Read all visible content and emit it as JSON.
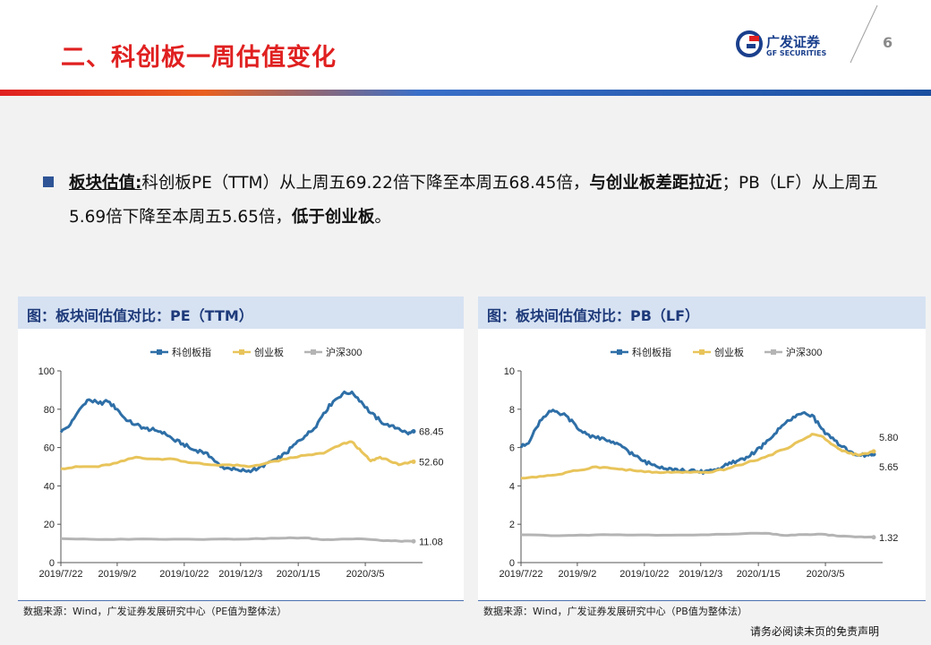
{
  "header": {
    "title": "二、科创板一周估值变化",
    "logo_cn": "广发证券",
    "logo_en": "GF SECURITIES",
    "page_number": "6"
  },
  "bullet": {
    "lead": "板块估值:",
    "text1": "科创板PE（TTM）从上周五69.22倍下降至本周五68.45倍，",
    "bold1": "与创业板差距拉近",
    "text2": "；PB（LF）从上周五5.69倍下降至本周五5.65倍，",
    "bold2": "低于创业板",
    "text3": "。"
  },
  "disclaimer": "请务必阅读末页的免责声明",
  "colors": {
    "title_red": "#e02020",
    "brand_blue": "#1a3f8c",
    "kechuang": "#2e6fa7",
    "chuangye": "#e8c45a",
    "hushen300": "#b4b4b4"
  },
  "chart_data": [
    {
      "type": "line",
      "panel_title": "图：板块间估值对比：PE（TTM）",
      "source": "数据来源：Wind，广发证券发展研究中心（PE值为整体法）",
      "legend_position": "top-center",
      "x_ticks": [
        "2019/7/22",
        "2019/9/2",
        "2019/10/22",
        "2019/12/3",
        "2020/1/15",
        "2020/3/5"
      ],
      "ylim": [
        0,
        100
      ],
      "y_ticks": [
        0,
        20,
        40,
        60,
        80,
        100
      ],
      "grid": false,
      "series": [
        {
          "name": "科创板指",
          "color": "#2e6fa7",
          "end_label": "68.45",
          "points": [
            [
              "2019-07-22",
              68
            ],
            [
              "2019-07-29",
              72
            ],
            [
              "2019-08-05",
              80
            ],
            [
              "2019-08-12",
              85
            ],
            [
              "2019-08-19",
              83
            ],
            [
              "2019-08-26",
              84
            ],
            [
              "2019-09-02",
              80
            ],
            [
              "2019-09-09",
              74
            ],
            [
              "2019-09-16",
              72
            ],
            [
              "2019-09-23",
              70
            ],
            [
              "2019-09-30",
              69
            ],
            [
              "2019-10-07",
              68
            ],
            [
              "2019-10-14",
              64
            ],
            [
              "2019-10-21",
              62
            ],
            [
              "2019-10-28",
              59
            ],
            [
              "2019-11-04",
              58
            ],
            [
              "2019-11-11",
              55
            ],
            [
              "2019-11-18",
              50
            ],
            [
              "2019-11-25",
              49
            ],
            [
              "2019-12-02",
              48
            ],
            [
              "2019-12-09",
              48
            ],
            [
              "2019-12-16",
              49
            ],
            [
              "2019-12-23",
              52
            ],
            [
              "2019-12-30",
              54
            ],
            [
              "2020-01-06",
              57
            ],
            [
              "2020-01-13",
              62
            ],
            [
              "2020-01-20",
              66
            ],
            [
              "2020-01-27",
              70
            ],
            [
              "2020-02-03",
              78
            ],
            [
              "2020-02-10",
              84
            ],
            [
              "2020-02-17",
              88
            ],
            [
              "2020-02-24",
              89
            ],
            [
              "2020-03-02",
              84
            ],
            [
              "2020-03-09",
              78
            ],
            [
              "2020-03-16",
              74
            ],
            [
              "2020-03-23",
              71
            ],
            [
              "2020-03-30",
              70
            ],
            [
              "2020-04-06",
              67
            ],
            [
              "2020-04-10",
              68.45
            ]
          ]
        },
        {
          "name": "创业板",
          "color": "#e8c45a",
          "end_label": "52.60",
          "points": [
            [
              "2019-07-22",
              49
            ],
            [
              "2019-08-05",
              50
            ],
            [
              "2019-08-19",
              50
            ],
            [
              "2019-09-02",
              52
            ],
            [
              "2019-09-16",
              55
            ],
            [
              "2019-09-30",
              54
            ],
            [
              "2019-10-14",
              54
            ],
            [
              "2019-10-28",
              52
            ],
            [
              "2019-11-11",
              51
            ],
            [
              "2019-11-25",
              51
            ],
            [
              "2019-12-09",
              50
            ],
            [
              "2019-12-23",
              52
            ],
            [
              "2020-01-06",
              54
            ],
            [
              "2020-01-20",
              56
            ],
            [
              "2020-02-03",
              57
            ],
            [
              "2020-02-17",
              62
            ],
            [
              "2020-02-24",
              63
            ],
            [
              "2020-03-02",
              58
            ],
            [
              "2020-03-09",
              53
            ],
            [
              "2020-03-16",
              55
            ],
            [
              "2020-03-23",
              53
            ],
            [
              "2020-03-30",
              51
            ],
            [
              "2020-04-10",
              52.6
            ]
          ]
        },
        {
          "name": "沪深300",
          "color": "#b4b4b4",
          "end_label": "11.08",
          "points": [
            [
              "2019-07-22",
              12.5
            ],
            [
              "2019-08-19",
              12
            ],
            [
              "2019-09-16",
              12.3
            ],
            [
              "2019-10-14",
              12.2
            ],
            [
              "2019-11-11",
              12.2
            ],
            [
              "2019-12-09",
              12.3
            ],
            [
              "2020-01-06",
              12.8
            ],
            [
              "2020-01-20",
              12.9
            ],
            [
              "2020-02-03",
              11.9
            ],
            [
              "2020-02-17",
              12.3
            ],
            [
              "2020-03-02",
              12.4
            ],
            [
              "2020-03-16",
              11.6
            ],
            [
              "2020-03-30",
              11.2
            ],
            [
              "2020-04-10",
              11.08
            ]
          ]
        }
      ]
    },
    {
      "type": "line",
      "panel_title": "图：板块间估值对比：PB（LF）",
      "source": "数据来源：Wind，广发证券发展研究中心（PB值为整体法）",
      "legend_position": "top-center",
      "x_ticks": [
        "2019/7/22",
        "2019/9/2",
        "2019/10/22",
        "2019/12/3",
        "2020/1/15",
        "2020/3/5"
      ],
      "ylim": [
        0,
        10
      ],
      "y_ticks": [
        0,
        2,
        4,
        6,
        8,
        10
      ],
      "grid": false,
      "series": [
        {
          "name": "科创板指",
          "color": "#2e6fa7",
          "end_label": "5.65",
          "points": [
            [
              "2019-07-22",
              6.0
            ],
            [
              "2019-07-29",
              6.4
            ],
            [
              "2019-08-05",
              7.4
            ],
            [
              "2019-08-12",
              7.9
            ],
            [
              "2019-08-19",
              7.8
            ],
            [
              "2019-08-26",
              7.6
            ],
            [
              "2019-09-02",
              7.0
            ],
            [
              "2019-09-09",
              6.7
            ],
            [
              "2019-09-16",
              6.5
            ],
            [
              "2019-09-23",
              6.4
            ],
            [
              "2019-09-30",
              6.2
            ],
            [
              "2019-10-07",
              6.0
            ],
            [
              "2019-10-14",
              5.6
            ],
            [
              "2019-10-21",
              5.3
            ],
            [
              "2019-10-28",
              5.1
            ],
            [
              "2019-11-04",
              5.0
            ],
            [
              "2019-11-11",
              4.9
            ],
            [
              "2019-11-18",
              4.8
            ],
            [
              "2019-11-25",
              4.8
            ],
            [
              "2019-12-02",
              4.7
            ],
            [
              "2019-12-09",
              4.8
            ],
            [
              "2019-12-16",
              4.9
            ],
            [
              "2019-12-23",
              5.1
            ],
            [
              "2019-12-30",
              5.3
            ],
            [
              "2020-01-06",
              5.5
            ],
            [
              "2020-01-13",
              5.8
            ],
            [
              "2020-01-20",
              6.2
            ],
            [
              "2020-01-27",
              6.7
            ],
            [
              "2020-02-03",
              7.2
            ],
            [
              "2020-02-10",
              7.6
            ],
            [
              "2020-02-17",
              7.8
            ],
            [
              "2020-02-24",
              7.7
            ],
            [
              "2020-03-02",
              7.0
            ],
            [
              "2020-03-09",
              6.5
            ],
            [
              "2020-03-16",
              6.1
            ],
            [
              "2020-03-23",
              5.8
            ],
            [
              "2020-03-30",
              5.6
            ],
            [
              "2020-04-06",
              5.6
            ],
            [
              "2020-04-10",
              5.65
            ]
          ]
        },
        {
          "name": "创业板",
          "color": "#e8c45a",
          "end_label": "5.80",
          "points": [
            [
              "2019-07-22",
              4.4
            ],
            [
              "2019-08-05",
              4.5
            ],
            [
              "2019-08-19",
              4.6
            ],
            [
              "2019-09-02",
              4.8
            ],
            [
              "2019-09-16",
              5.0
            ],
            [
              "2019-09-30",
              4.9
            ],
            [
              "2019-10-14",
              4.8
            ],
            [
              "2019-10-28",
              4.7
            ],
            [
              "2019-11-11",
              4.7
            ],
            [
              "2019-11-25",
              4.7
            ],
            [
              "2019-12-09",
              4.7
            ],
            [
              "2019-12-23",
              4.9
            ],
            [
              "2020-01-06",
              5.2
            ],
            [
              "2020-01-20",
              5.5
            ],
            [
              "2020-02-03",
              5.9
            ],
            [
              "2020-02-17",
              6.4
            ],
            [
              "2020-02-24",
              6.7
            ],
            [
              "2020-03-02",
              6.6
            ],
            [
              "2020-03-09",
              6.2
            ],
            [
              "2020-03-16",
              5.9
            ],
            [
              "2020-03-23",
              5.7
            ],
            [
              "2020-03-30",
              5.6
            ],
            [
              "2020-04-10",
              5.8
            ]
          ]
        },
        {
          "name": "沪深300",
          "color": "#b4b4b4",
          "end_label": "1.32",
          "points": [
            [
              "2019-07-22",
              1.45
            ],
            [
              "2019-08-19",
              1.4
            ],
            [
              "2019-09-16",
              1.45
            ],
            [
              "2019-10-14",
              1.44
            ],
            [
              "2019-11-11",
              1.43
            ],
            [
              "2019-12-09",
              1.45
            ],
            [
              "2020-01-06",
              1.52
            ],
            [
              "2020-01-20",
              1.53
            ],
            [
              "2020-02-03",
              1.42
            ],
            [
              "2020-02-17",
              1.46
            ],
            [
              "2020-03-02",
              1.48
            ],
            [
              "2020-03-16",
              1.38
            ],
            [
              "2020-03-30",
              1.34
            ],
            [
              "2020-04-10",
              1.32
            ]
          ]
        }
      ]
    }
  ]
}
